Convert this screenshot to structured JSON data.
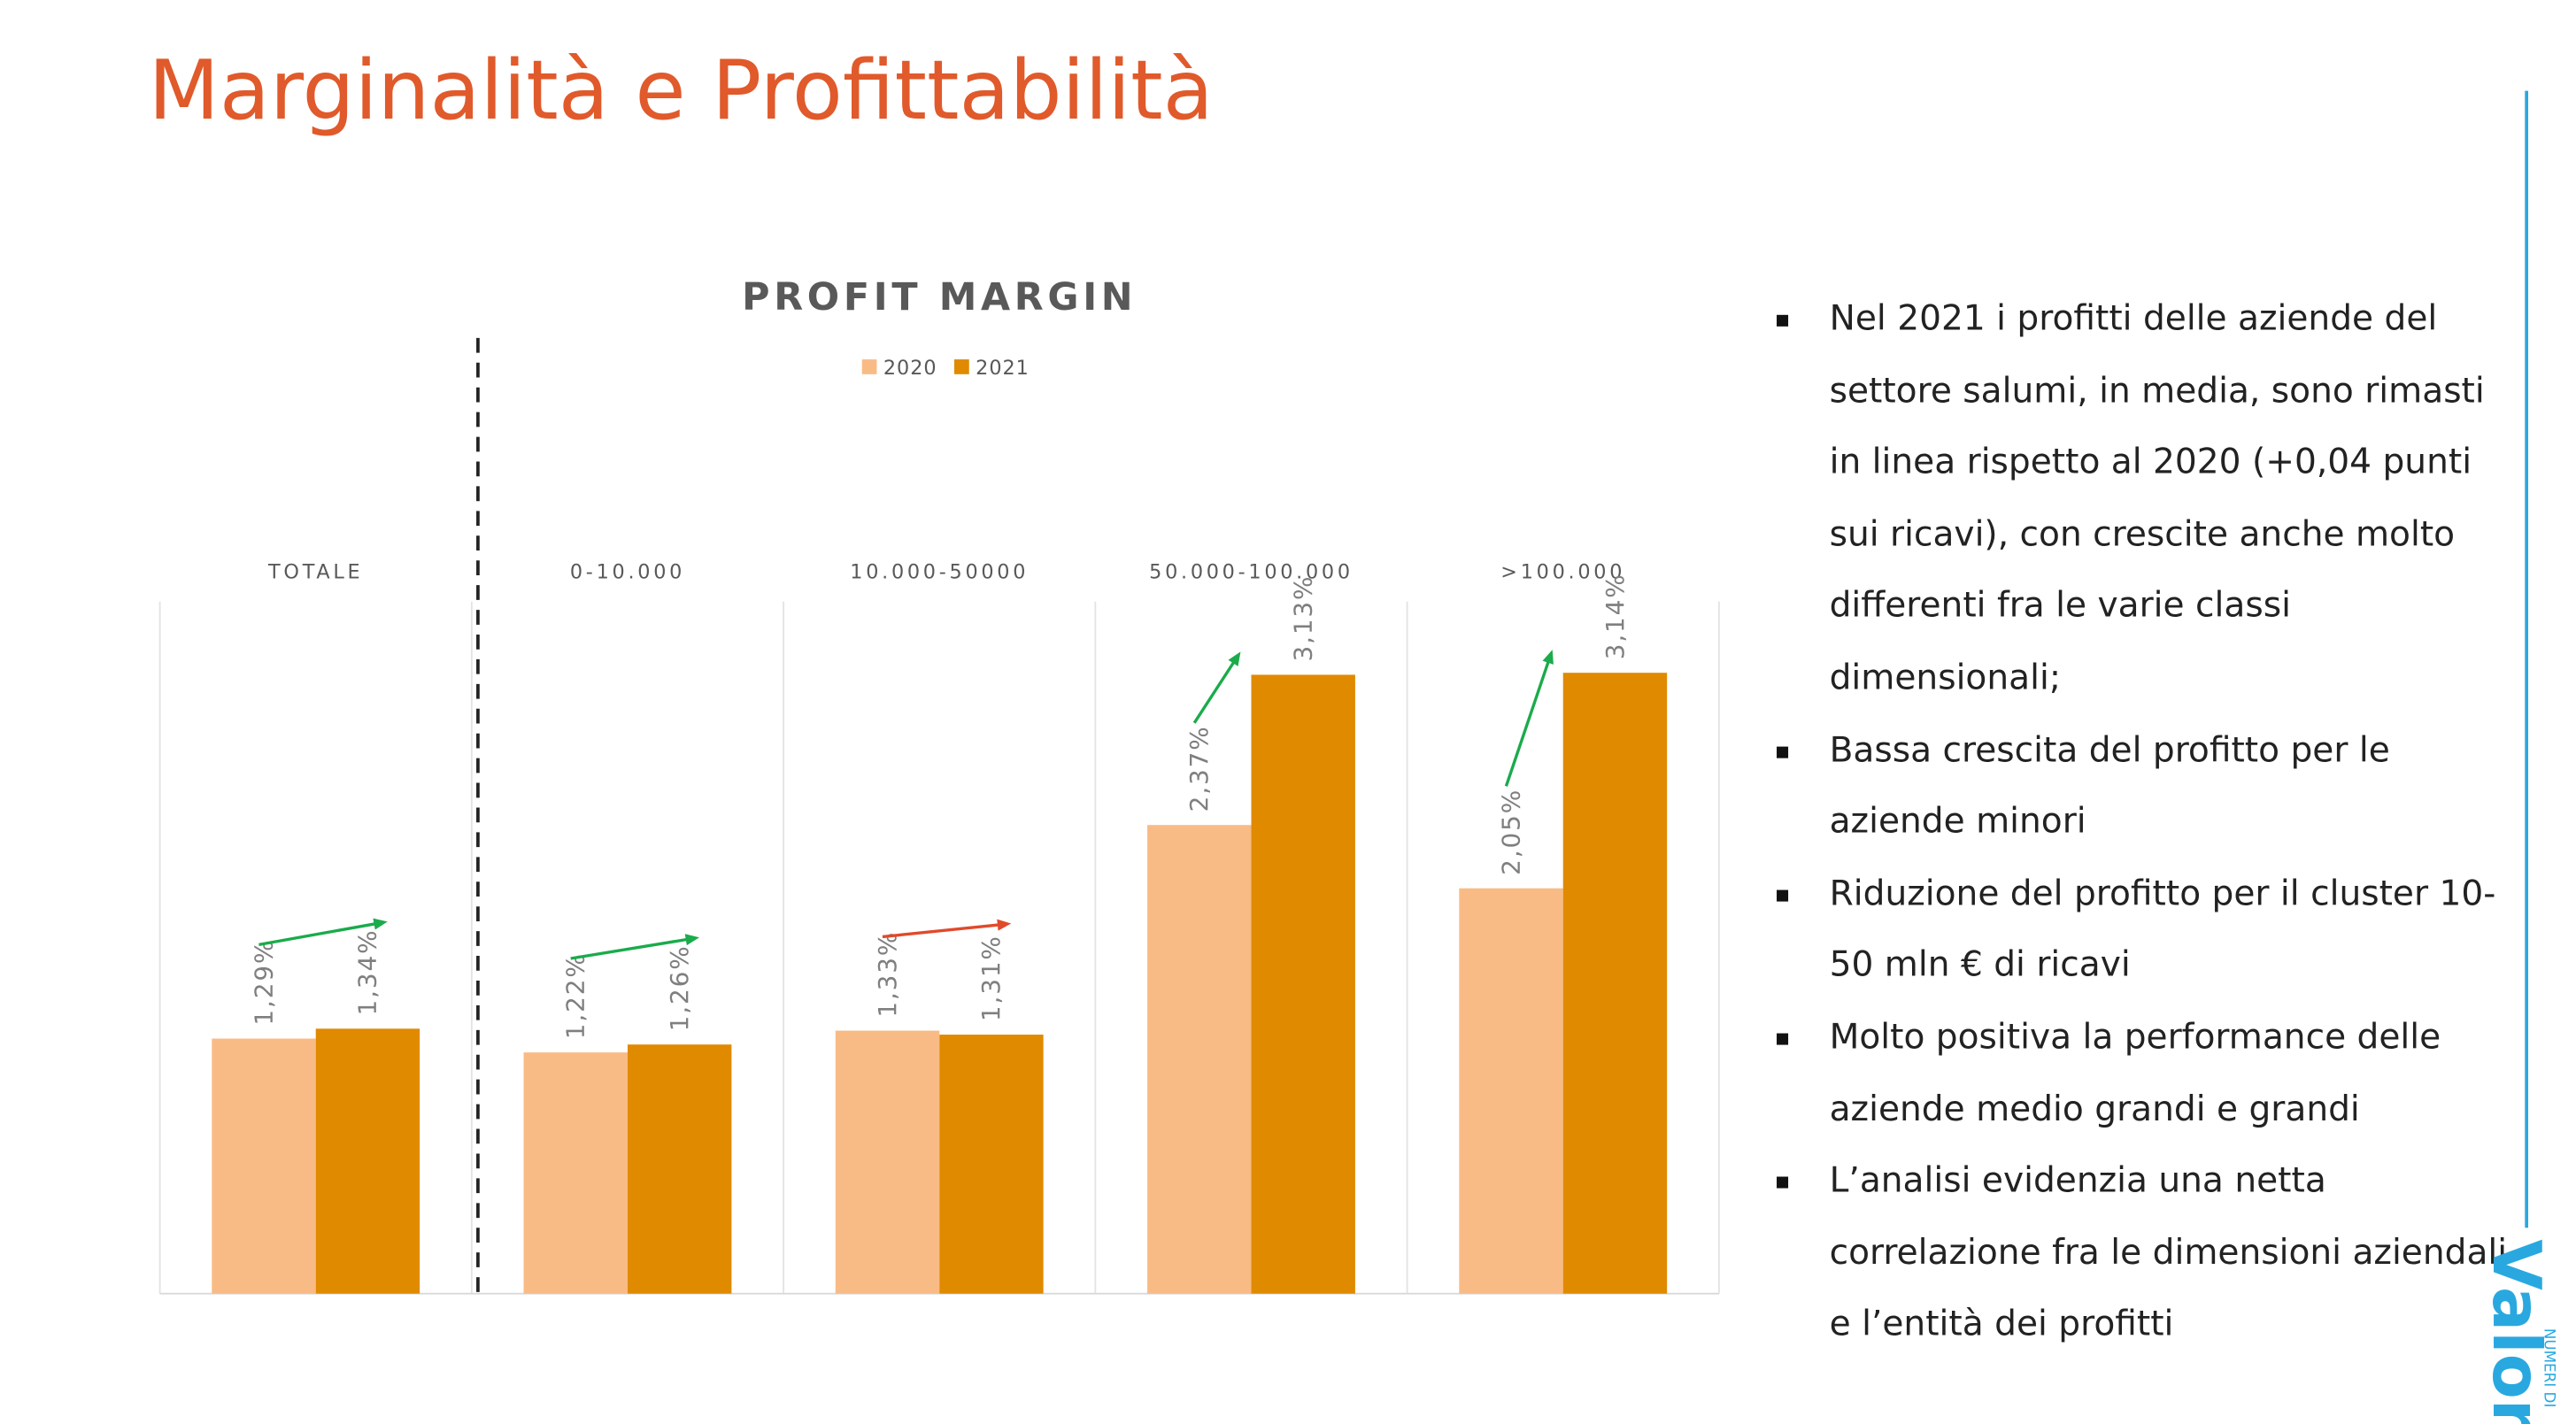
{
  "slide_title": "Marginalità e Profittabilità",
  "chart_data": {
    "type": "bar",
    "title": "PROFIT MARGIN",
    "categories": [
      "TOTALE",
      "0-10.000",
      "10.000-50000",
      "50.000-100.000",
      ">100.000"
    ],
    "series": [
      {
        "name": "2020",
        "color": "#f9bb85",
        "values": [
          1.29,
          1.22,
          1.33,
          2.37,
          2.05
        ],
        "value_labels": [
          "1,29%",
          "1,22%",
          "1,33%",
          "2,37%",
          "2,05%"
        ]
      },
      {
        "name": "2021",
        "color": "#e08a00",
        "values": [
          1.34,
          1.26,
          1.31,
          3.13,
          3.14
        ],
        "value_labels": [
          "1,34%",
          "1,26%",
          "1,31%",
          "3,13%",
          "3,14%"
        ]
      }
    ],
    "ylim": [
      0,
      3.5
    ],
    "legend": "top"
  },
  "bullets": [
    "Nel 2021 i profitti delle aziende del settore salumi, in media, sono rimasti in linea rispetto al 2020 (+0,04 punti sui ricavi), con crescite anche molto differenti fra le varie classi dimensionali;",
    "Bassa crescita del profitto per le aziende minori",
    "Riduzione del profitto per il cluster 10-50 mln € di ricavi",
    "Molto positiva la performance delle aziende medio grandi e grandi",
    "L’analisi evidenzia una netta correlazione fra le dimensioni aziendali e l’entità dei profitti"
  ],
  "logo": {
    "name": "Valore",
    "tag": "NUMERI DI"
  }
}
